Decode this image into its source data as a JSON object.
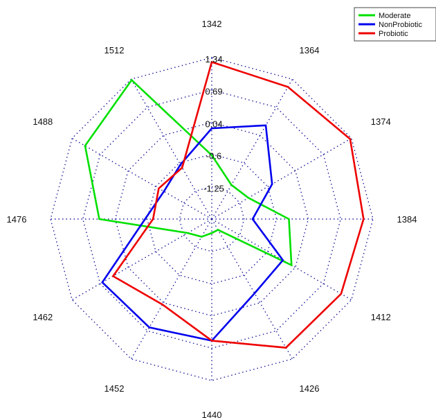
{
  "chart_data": {
    "type": "radar",
    "title": "",
    "categories": [
      "1342",
      "1364",
      "1374",
      "1384",
      "1412",
      "1426",
      "1440",
      "1452",
      "1462",
      "1476",
      "1488",
      "1512"
    ],
    "ring_labels": [
      "-1.25",
      "-0.6",
      "0.04",
      "0.69",
      "1.34"
    ],
    "rlim": [
      -1.9,
      1.34
    ],
    "grid": true,
    "legend_position": "top-right",
    "series": [
      {
        "name": "Moderate",
        "color": "#00e000",
        "values": [
          -0.62,
          -1.11,
          -1.05,
          -0.35,
          -0.05,
          -1.65,
          -1.62,
          -1.49,
          -1.34,
          0.36,
          1.04,
          1.32
        ]
      },
      {
        "name": "NonProbiotic",
        "color": "#0000ee",
        "values": [
          -0.08,
          0.27,
          -0.5,
          -1.08,
          -0.25,
          -0.18,
          0.54,
          0.61,
          0.64,
          -0.56,
          -0.79,
          -0.64
        ]
      },
      {
        "name": "Probiotic",
        "color": "#ee0000",
        "values": [
          1.25,
          1.16,
          1.31,
          1.15,
          1.1,
          1.08,
          0.54,
          0.08,
          0.39,
          -0.72,
          -0.67,
          -0.71
        ]
      }
    ]
  }
}
